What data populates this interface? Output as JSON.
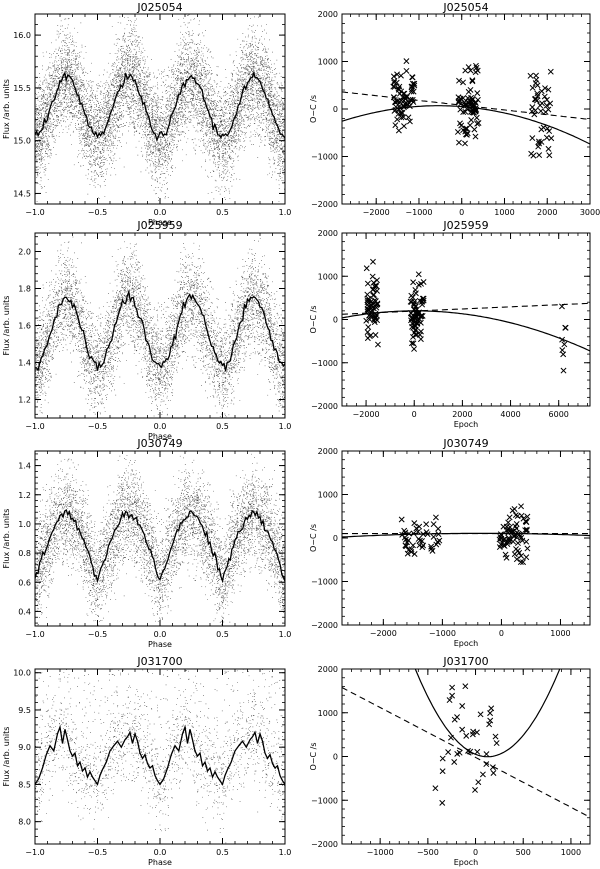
{
  "figure": {
    "panels_note": "",
    "colors": {
      "ink": "#000000",
      "background": "#ffffff"
    }
  },
  "chart_data": [
    {
      "id": "p1",
      "type": "scatter",
      "title": "J025054",
      "xlabel": "Phase",
      "ylabel": "Flux /arb. units",
      "xlim": [
        -1.0,
        1.0
      ],
      "ylim": [
        14.4,
        16.2
      ],
      "xticks": [
        -1.0,
        -0.5,
        0.0,
        0.5,
        1.0
      ],
      "xtick_labels": [
        "−1.0",
        "−0.5",
        "0.0",
        "0.5",
        "1.0"
      ],
      "yticks": [
        14.5,
        15.0,
        15.5,
        16.0
      ],
      "ytick_labels": [
        "14.5",
        "15.0",
        "15.5",
        "16.0"
      ],
      "curve": {
        "kind": "sine",
        "mean": 15.32,
        "amp": 0.28,
        "period": 0.5,
        "max_at": 0.25,
        "jitter": 0.02
      },
      "scatter": {
        "n": 9000,
        "spread": 0.24
      }
    },
    {
      "id": "p2",
      "type": "scatter",
      "title": "J025054",
      "xlabel": "",
      "ylabel": "O−C /s",
      "xlim": [
        -2800,
        3000
      ],
      "ylim": [
        -2000,
        2000
      ],
      "xticks": [
        -2000,
        -1000,
        0,
        1000,
        2000,
        3000
      ],
      "xtick_labels": [
        "−2000",
        "−1000",
        "0",
        "1000",
        "2000",
        "3000"
      ],
      "yticks": [
        -2000,
        -1000,
        0,
        1000,
        2000
      ],
      "ytick_labels": [
        "−2000",
        "−1000",
        "0",
        "1000",
        "2000"
      ],
      "clusters": [
        {
          "x": [
            -1600,
            -1100
          ],
          "y": [
            -300,
            800
          ],
          "n": 70
        },
        {
          "x": [
            -100,
            400
          ],
          "y": [
            -500,
            600
          ],
          "n": 75
        },
        {
          "x": [
            1600,
            2100
          ],
          "y": [
            -800,
            500
          ],
          "n": 45
        }
      ],
      "fit_linear": {
        "a": 80,
        "b": -0.1
      },
      "fit_quadratic": {
        "a": 50,
        "b": -0.07,
        "c": -6.42e-05
      }
    },
    {
      "id": "p3",
      "type": "scatter",
      "title": "J025959",
      "xlabel": "Phase",
      "ylabel": "Flux /arb. units",
      "xlim": [
        -1.0,
        1.0
      ],
      "ylim": [
        1.1,
        2.1
      ],
      "xticks": [
        -1.0,
        -0.5,
        0.0,
        0.5,
        1.0
      ],
      "xtick_labels": [
        "−1.0",
        "−0.5",
        "0.0",
        "0.5",
        "1.0"
      ],
      "yticks": [
        1.2,
        1.4,
        1.6,
        1.8,
        2.0
      ],
      "ytick_labels": [
        "1.2",
        "1.4",
        "1.6",
        "1.8",
        "2.0"
      ],
      "curve": {
        "kind": "sine",
        "mean": 1.565,
        "amp": 0.185,
        "period": 0.5,
        "max_at": 0.25,
        "jitter": 0.015
      },
      "scatter": {
        "n": 6500,
        "spread": 0.13
      }
    },
    {
      "id": "p4",
      "type": "scatter",
      "title": "J025959",
      "xlabel": "Epoch",
      "ylabel": "O−C /s",
      "xlim": [
        -3000,
        7300
      ],
      "ylim": [
        -2000,
        2000
      ],
      "xticks": [
        -2000,
        0,
        2000,
        4000,
        6000
      ],
      "xtick_labels": [
        "−2000",
        "0",
        "2000",
        "4000",
        "6000"
      ],
      "yticks": [
        -2000,
        -1000,
        0,
        1000,
        2000
      ],
      "ytick_labels": [
        "−2000",
        "−1000",
        "0",
        "1000",
        "2000"
      ],
      "clusters": [
        {
          "x": [
            -2000,
            -1500
          ],
          "y": [
            -300,
            900
          ],
          "n": 60
        },
        {
          "x": [
            -150,
            400
          ],
          "y": [
            -500,
            800
          ],
          "n": 70
        },
        {
          "x": [
            6100,
            6300
          ],
          "y": [
            -1100,
            400
          ],
          "n": 8
        }
      ],
      "fit_linear": {
        "a": 195,
        "b": 0.0245
      },
      "fit_quadratic": {
        "a": 200,
        "b": 0.0015,
        "c": -1.76e-05
      }
    },
    {
      "id": "p5",
      "type": "scatter",
      "title": "J030749",
      "xlabel": "Phase",
      "ylabel": "Flux /arb. units",
      "xlim": [
        -1.0,
        1.0
      ],
      "ylim": [
        0.3,
        1.5
      ],
      "xticks": [
        -1.0,
        -0.5,
        0.0,
        0.5,
        1.0
      ],
      "xtick_labels": [
        "−1.0",
        "−0.5",
        "0.0",
        "0.5",
        "1.0"
      ],
      "yticks": [
        0.4,
        0.6,
        0.8,
        1.0,
        1.2,
        1.4
      ],
      "ytick_labels": [
        "0.4",
        "0.6",
        "0.8",
        "1.0",
        "1.2",
        "1.4"
      ],
      "curve": {
        "kind": "cusp",
        "mean": 0.84,
        "amp": 0.235,
        "period": 0.5,
        "max_at": 0.25,
        "jitter": 0.015
      },
      "scatter": {
        "n": 6500,
        "spread": 0.16
      }
    },
    {
      "id": "p6",
      "type": "scatter",
      "title": "J030749",
      "xlabel": "Epoch",
      "ylabel": "O−C /s",
      "xlim": [
        -2700,
        1500
      ],
      "ylim": [
        -2000,
        2000
      ],
      "xticks": [
        -2000,
        -1000,
        0,
        1000
      ],
      "xtick_labels": [
        "−2000",
        "−1000",
        "0",
        "1000"
      ],
      "yticks": [
        -2000,
        -1000,
        0,
        1000,
        2000
      ],
      "ytick_labels": [
        "−2000",
        "−1000",
        "0",
        "1000",
        "2000"
      ],
      "clusters": [
        {
          "x": [
            -1700,
            -1050
          ],
          "y": [
            -300,
            400
          ],
          "n": 45
        },
        {
          "x": [
            -50,
            450
          ],
          "y": [
            -500,
            500
          ],
          "n": 70
        }
      ],
      "fit_linear": {
        "a": 100,
        "b": 0.0
      },
      "fit_quadratic": {
        "a": 105,
        "b": -0.01,
        "c": -1.5e-05
      }
    },
    {
      "id": "p7",
      "type": "line",
      "title": "J031700",
      "xlabel": "Phase",
      "ylabel": "Flux /arb. units",
      "xlim": [
        -1.0,
        1.0
      ],
      "ylim": [
        7.7,
        10.05
      ],
      "xticks": [
        -1.0,
        -0.5,
        0.0,
        0.5,
        1.0
      ],
      "xtick_labels": [
        "−1.0",
        "−0.5",
        "0.0",
        "0.5",
        "1.0"
      ],
      "yticks": [
        8.0,
        8.5,
        9.0,
        9.5,
        10.0
      ],
      "ytick_labels": [
        "8.0",
        "8.5",
        "9.0",
        "9.5",
        "10.0"
      ],
      "curve_points": {
        "x": [
          0.0,
          0.03,
          0.06,
          0.09,
          0.12,
          0.15,
          0.18,
          0.2,
          0.22,
          0.24,
          0.26,
          0.28,
          0.3,
          0.32,
          0.34,
          0.36,
          0.38,
          0.4,
          0.42,
          0.44,
          0.46,
          0.48,
          0.5,
          0.52,
          0.54,
          0.57,
          0.6,
          0.63,
          0.66,
          0.69,
          0.72,
          0.74,
          0.76,
          0.78,
          0.8,
          0.82,
          0.84,
          0.86,
          0.88,
          0.9,
          0.92,
          0.94,
          0.96,
          0.98,
          1.0
        ],
        "y": [
          8.5,
          8.58,
          8.72,
          8.9,
          9.02,
          8.95,
          9.18,
          9.27,
          9.05,
          9.24,
          9.1,
          8.95,
          8.88,
          8.92,
          8.75,
          8.8,
          8.68,
          8.72,
          8.6,
          8.67,
          8.6,
          8.55,
          8.5,
          8.62,
          8.7,
          8.8,
          8.95,
          9.02,
          9.08,
          9.0,
          9.1,
          9.14,
          9.2,
          9.05,
          9.18,
          9.08,
          8.92,
          8.85,
          8.9,
          8.78,
          8.72,
          8.75,
          8.62,
          8.55,
          8.5
        ]
      },
      "scatter": {
        "n": 2200,
        "spread": 0.3
      }
    },
    {
      "id": "p8",
      "type": "scatter",
      "title": "J031700",
      "xlabel": "Epoch",
      "ylabel": "O−C /s",
      "xlim": [
        -1400,
        1200
      ],
      "ylim": [
        -2000,
        2000
      ],
      "xticks": [
        -1000,
        -500,
        0,
        500,
        1000
      ],
      "xtick_labels": [
        "−1000",
        "−500",
        "0",
        "500",
        "1000"
      ],
      "yticks": [
        -2000,
        -1000,
        0,
        1000,
        2000
      ],
      "ytick_labels": [
        "−2000",
        "−1000",
        "0",
        "1000",
        "2000"
      ],
      "clusters": [
        {
          "x": [
            -450,
            250
          ],
          "y": [
            -700,
            1200
          ],
          "n": 38
        }
      ],
      "fit_linear": {
        "a": -20,
        "b": -1.14
      },
      "fit_quadratic": {
        "a": 50,
        "b": -0.88,
        "c": 0.0035
      }
    }
  ]
}
